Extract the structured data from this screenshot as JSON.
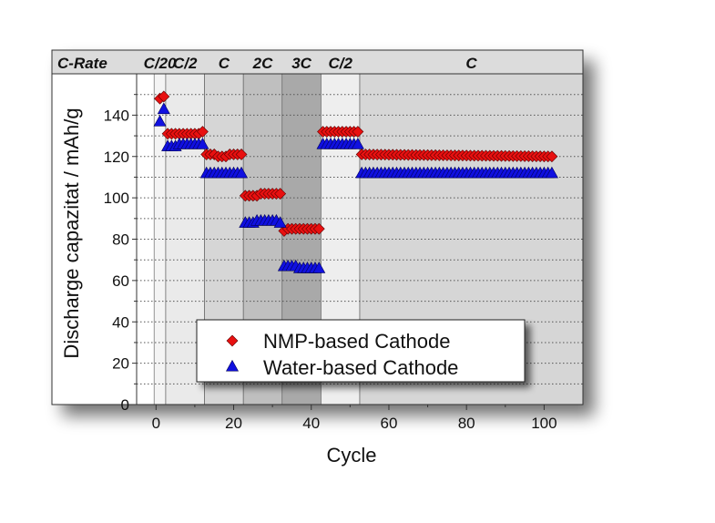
{
  "chart_data": {
    "type": "scatter",
    "xlabel": "Cycle",
    "ylabel": "Discharge capazitat / mAh/g",
    "xlim": [
      -5,
      110
    ],
    "ylim": [
      0,
      160
    ],
    "xticks": [
      0,
      20,
      40,
      60,
      80,
      100
    ],
    "yticks": [
      0,
      20,
      40,
      60,
      80,
      100,
      120,
      140
    ],
    "grid": "horizontal dotted",
    "legend_placement": "bottom-center",
    "rate_header": "C-Rate",
    "rate_regions": [
      {
        "label": "C/20",
        "start": -0.5,
        "end": 2.5,
        "shade": "#f4f4f4"
      },
      {
        "label": "C/2",
        "start": 2.5,
        "end": 12.5,
        "shade": "#eaeaea"
      },
      {
        "label": "C",
        "start": 12.5,
        "end": 22.5,
        "shade": "#d6d6d6"
      },
      {
        "label": "2C",
        "start": 22.5,
        "end": 32.5,
        "shade": "#bfbfbf"
      },
      {
        "label": "3C",
        "start": 32.5,
        "end": 42.5,
        "shade": "#a9a9a9"
      },
      {
        "label": "C/2",
        "start": 42.5,
        "end": 52.5,
        "shade": "#eeeeee"
      },
      {
        "label": "C",
        "start": 52.5,
        "end": 110,
        "shade": "#d6d6d6"
      }
    ],
    "series": [
      {
        "name": "NMP-based Cathode",
        "marker": "diamond",
        "color": "#e81010",
        "segments": [
          {
            "x_start": 1,
            "x_end": 2,
            "values": [
              148,
              149
            ]
          },
          {
            "x_start": 3,
            "x_end": 12,
            "values": [
              131,
              131,
              131,
              131,
              131,
              131,
              131,
              131,
              131,
              132
            ]
          },
          {
            "x_start": 13,
            "x_end": 22,
            "values": [
              121,
              121,
              121,
              120,
              120,
              120,
              121,
              121,
              121,
              121
            ]
          },
          {
            "x_start": 23,
            "x_end": 32,
            "values": [
              101,
              101,
              101,
              101,
              102,
              102,
              102,
              102,
              102,
              102
            ]
          },
          {
            "x_start": 33,
            "x_end": 42,
            "values": [
              84,
              85,
              85,
              85,
              85,
              85,
              85,
              85,
              85,
              85
            ]
          },
          {
            "x_start": 43,
            "x_end": 52,
            "values": [
              132,
              132,
              132,
              132,
              132,
              132,
              132,
              132,
              132,
              132
            ]
          },
          {
            "x_start": 53,
            "x_end": 102,
            "start_value": 121,
            "end_value": 120
          }
        ]
      },
      {
        "name": "Water-based Cathode",
        "marker": "triangle",
        "color": "#1010e0",
        "segments": [
          {
            "x_start": 1,
            "x_end": 2,
            "values": [
              137,
              143
            ]
          },
          {
            "x_start": 3,
            "x_end": 12,
            "values": [
              125,
              125,
              125,
              126,
              126,
              126,
              126,
              126,
              126,
              126
            ]
          },
          {
            "x_start": 13,
            "x_end": 22,
            "values": [
              112,
              112,
              112,
              112,
              112,
              112,
              112,
              112,
              112,
              112
            ]
          },
          {
            "x_start": 23,
            "x_end": 32,
            "values": [
              88,
              88,
              88,
              89,
              89,
              89,
              89,
              89,
              89,
              88
            ]
          },
          {
            "x_start": 33,
            "x_end": 42,
            "values": [
              67,
              67,
              67,
              67,
              66,
              66,
              66,
              66,
              66,
              66
            ]
          },
          {
            "x_start": 43,
            "x_end": 52,
            "values": [
              126,
              126,
              126,
              126,
              126,
              126,
              126,
              126,
              126,
              126
            ]
          },
          {
            "x_start": 53,
            "x_end": 102,
            "start_value": 112,
            "end_value": 112
          }
        ]
      }
    ]
  }
}
